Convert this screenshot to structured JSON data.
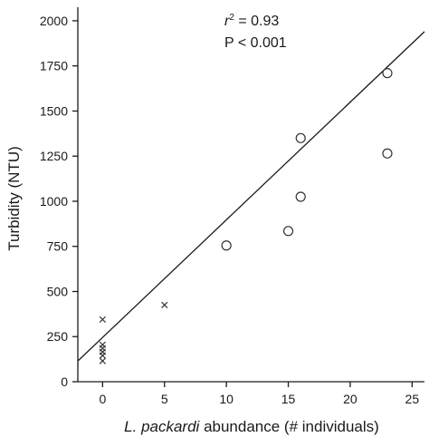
{
  "chart_data": {
    "type": "scatter",
    "title": "",
    "xlabel_italic": "L. packardi",
    "xlabel_rest": " abundance (# individuals)",
    "ylabel": "Turbidity (NTU)",
    "xlim": [
      -2,
      26
    ],
    "ylim": [
      0,
      2075
    ],
    "xticks": [
      0,
      5,
      10,
      15,
      20,
      25
    ],
    "yticks": [
      0,
      250,
      500,
      750,
      1000,
      1250,
      1500,
      1750,
      2000
    ],
    "grid": false,
    "annotations": {
      "r2_symbol": "r",
      "r2_sup": "2",
      "r2_value": " = 0.93",
      "p_value": "P < 0.001"
    },
    "series": [
      {
        "marker": "x",
        "points": [
          [
            0,
            345
          ],
          [
            0,
            205
          ],
          [
            0,
            185
          ],
          [
            0,
            165
          ],
          [
            0,
            145
          ],
          [
            0,
            115
          ],
          [
            5,
            425
          ]
        ]
      },
      {
        "marker": "circle",
        "points": [
          [
            10,
            755
          ],
          [
            15,
            835
          ],
          [
            16,
            1350
          ],
          [
            16,
            1025
          ],
          [
            23,
            1710
          ],
          [
            23,
            1265
          ]
        ]
      }
    ],
    "fit_line": {
      "x": [
        -2,
        26
      ],
      "y": [
        115,
        1940
      ]
    }
  }
}
